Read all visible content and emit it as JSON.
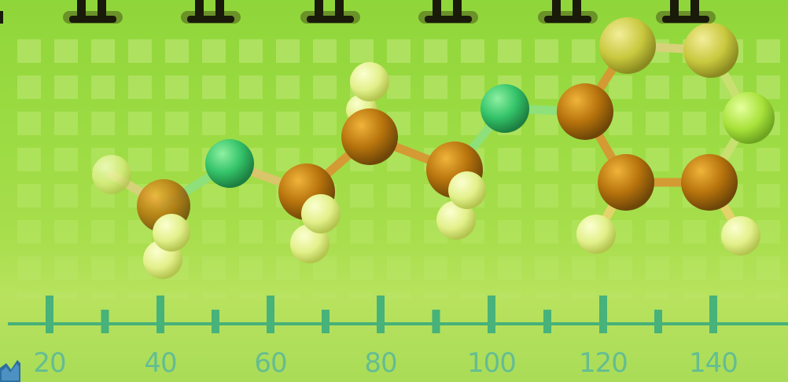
{
  "scene": {
    "colors": {
      "background": "#9cdb43",
      "grid_square": "#c4ea7c",
      "carbon_atom": "#b8740d",
      "nitrogen_atom": "#35c46a",
      "hydrogen_atom": "#e2f08a",
      "ring_atom_light": "#c9c83e",
      "ruler": "#47b27a",
      "ruler_label": "#58b89c",
      "top_marker": "#1a1a0a"
    }
  },
  "ruler": {
    "labels": [
      "20",
      "40",
      "60",
      "80",
      "100",
      "120",
      "140"
    ]
  },
  "icons": {
    "corner": "signal-icon",
    "top_marker": "pin-marker-icon"
  }
}
